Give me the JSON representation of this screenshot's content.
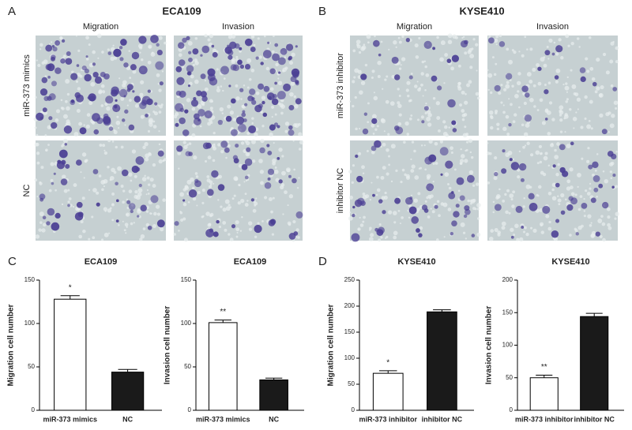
{
  "panels": [
    {
      "label": "A",
      "title": "ECA109",
      "columns": [
        "Migration",
        "Invasion"
      ],
      "rows": [
        "miR-373 mimics",
        "NC"
      ]
    },
    {
      "label": "B",
      "title": "KYSE410",
      "columns": [
        "Migration",
        "Invasion"
      ],
      "rows": [
        "miR-373 inhibitor",
        "inhibitor NC"
      ]
    }
  ],
  "chart_panels": [
    "C",
    "D"
  ],
  "chart_data": [
    {
      "type": "bar",
      "title": "ECA109",
      "ylabel": "Migration cell number",
      "categories": [
        "miR-373 mimics",
        "NC"
      ],
      "values": [
        128,
        44
      ],
      "errors": [
        4,
        3
      ],
      "colors": [
        "#ffffff",
        "#1a1a1a"
      ],
      "ylim": [
        0,
        150
      ],
      "yticks": [
        0,
        50,
        100,
        150
      ],
      "annotation": "*"
    },
    {
      "type": "bar",
      "title": "ECA109",
      "ylabel": "Invasion cell number",
      "categories": [
        "miR-373 mimics",
        "NC"
      ],
      "values": [
        101,
        35
      ],
      "errors": [
        3,
        2
      ],
      "colors": [
        "#ffffff",
        "#1a1a1a"
      ],
      "ylim": [
        0,
        150
      ],
      "yticks": [
        0,
        50,
        100,
        150
      ],
      "annotation": "**"
    },
    {
      "type": "bar",
      "title": "KYSE410",
      "ylabel": "Migration cell number",
      "categories": [
        "miR-373 inhibitor",
        "inhibitor NC"
      ],
      "values": [
        71,
        189
      ],
      "errors": [
        5,
        4
      ],
      "colors": [
        "#ffffff",
        "#1a1a1a"
      ],
      "ylim": [
        0,
        250
      ],
      "yticks": [
        0,
        50,
        100,
        150,
        200,
        250
      ],
      "annotation": "*"
    },
    {
      "type": "bar",
      "title": "KYSE410",
      "ylabel": "Invasion cell number",
      "categories": [
        "miR-373 inhibitor",
        "inhibitor NC"
      ],
      "values": [
        50,
        144
      ],
      "errors": [
        4,
        5
      ],
      "colors": [
        "#ffffff",
        "#1a1a1a"
      ],
      "ylim": [
        0,
        200
      ],
      "yticks": [
        0,
        50,
        100,
        150,
        200
      ],
      "annotation": "**"
    }
  ]
}
